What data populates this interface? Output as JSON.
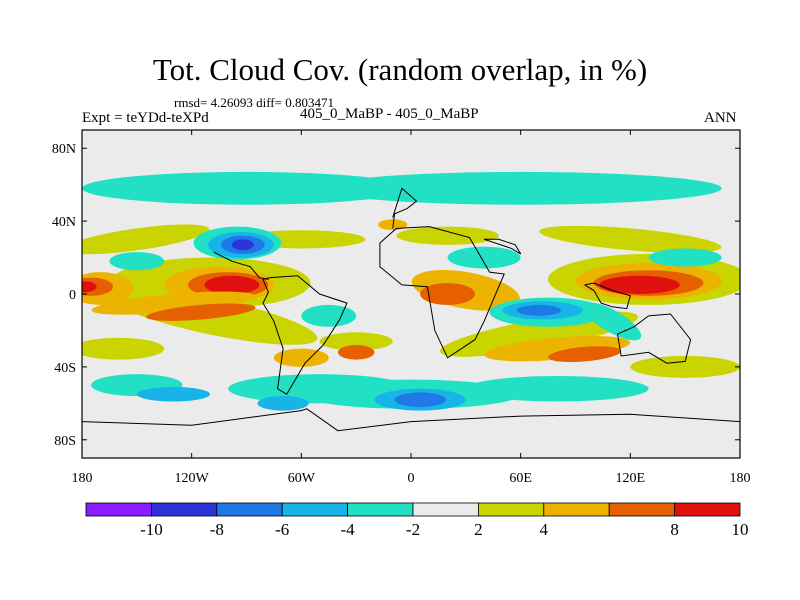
{
  "header": {
    "title": "Tot. Cloud Cov. (random overlap, in %)",
    "stats": "rmsd= 4.26093 diff= 0.803471",
    "expt": "Expt = teYDd-teXPd",
    "case": "405_0_MaBP - 405_0_MaBP",
    "season": "ANN"
  },
  "chart_data": {
    "type": "heatmap",
    "title": "Tot. Cloud Cov. (random overlap, in %)",
    "projection": "cylindrical-equidistant",
    "xlim": [
      -180,
      180
    ],
    "ylim": [
      -90,
      90
    ],
    "x_ticks": [
      {
        "value": -180,
        "label": "180"
      },
      {
        "value": -120,
        "label": "120W"
      },
      {
        "value": -60,
        "label": "60W"
      },
      {
        "value": 0,
        "label": "0"
      },
      {
        "value": 60,
        "label": "60E"
      },
      {
        "value": 120,
        "label": "120E"
      },
      {
        "value": 180,
        "label": "180"
      }
    ],
    "y_ticks": [
      {
        "value": 80,
        "label": "80N"
      },
      {
        "value": 40,
        "label": "40N"
      },
      {
        "value": 0,
        "label": "0"
      },
      {
        "value": -40,
        "label": "40S"
      },
      {
        "value": -80,
        "label": "80S"
      }
    ],
    "colorbar": {
      "levels": [
        -10,
        -8,
        -6,
        -4,
        -2,
        2,
        4,
        6,
        8,
        10
      ],
      "labels": [
        "-10",
        "-8",
        "-6",
        "-4",
        "-2",
        "2",
        "4",
        "8",
        "10"
      ],
      "label_levels": [
        -10,
        -8,
        -6,
        -4,
        -2,
        2,
        4,
        8,
        10
      ],
      "colors": [
        "#8a1cff",
        "#2c34d9",
        "#1e78e6",
        "#18b4e8",
        "#22e0c4",
        "#ebebeb",
        "#c9d400",
        "#ecb400",
        "#e66000",
        "#e01010"
      ]
    },
    "features": [
      {
        "region": "20N-40N band",
        "lon": [
          -180,
          180
        ],
        "lat": [
          20,
          42
        ],
        "level": "2 to 4"
      },
      {
        "region": "Tropical Pacific west",
        "lon": [
          -180,
          -145
        ],
        "lat": [
          -5,
          12
        ],
        "level": "8 to 10"
      },
      {
        "region": "Central Pacific maximum",
        "lon": [
          -125,
          -75
        ],
        "lat": [
          -2,
          14
        ],
        "level": "8 to 10"
      },
      {
        "region": "West Pacific maximum",
        "lon": [
          95,
          165
        ],
        "lat": [
          -2,
          18
        ],
        "level": "8 to 10"
      },
      {
        "region": "Subtropical North Pacific minimum",
        "lon": [
          -105,
          -85
        ],
        "lat": [
          22,
          35
        ],
        "level": "-8 to -6"
      },
      {
        "region": "Southern Indian Ocean minimum",
        "lon": [
          50,
          100
        ],
        "lat": [
          -15,
          -5
        ],
        "level": "-6 to -4"
      },
      {
        "region": "Southern Ocean minimum",
        "lon": [
          -5,
          20
        ],
        "lat": [
          -62,
          -52
        ],
        "level": "-8 to -6"
      },
      {
        "region": "45N-65N band",
        "lon": [
          -180,
          180
        ],
        "lat": [
          45,
          68
        ],
        "level": "-4 to -2"
      }
    ]
  }
}
